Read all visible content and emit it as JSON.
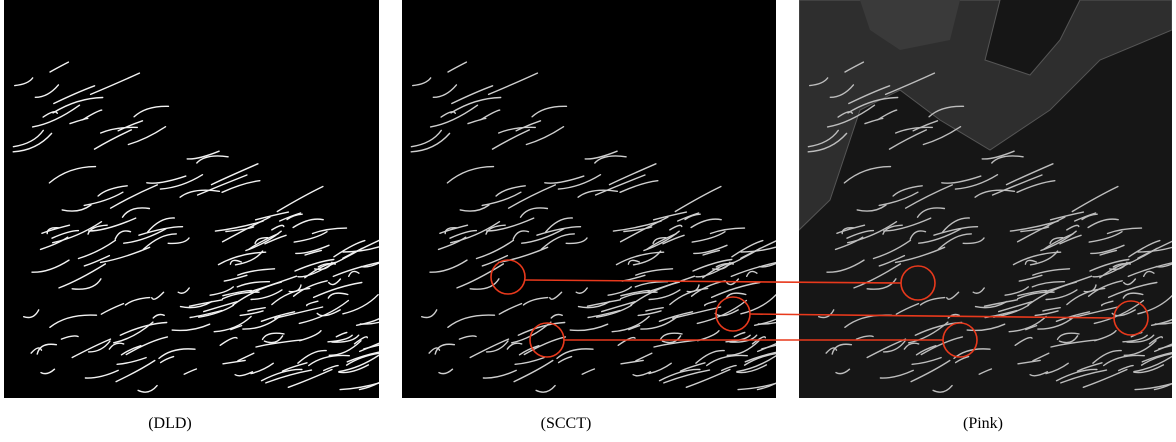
{
  "figure": {
    "panels": [
      {
        "caption": "(DLD)"
      },
      {
        "caption": "(SCCT)"
      },
      {
        "caption": "(Pink)"
      }
    ]
  }
}
